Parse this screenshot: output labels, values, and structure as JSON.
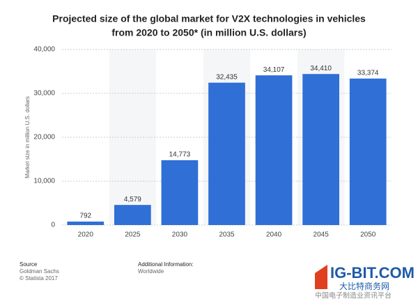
{
  "chart_data": {
    "type": "bar",
    "title": [
      "Projected size of the global market for V2X technologies in vehicles",
      "from 2020 to 2050* (in million U.S. dollars)"
    ],
    "y_label": "Market size in million U.S. dollars",
    "categories": [
      "2020",
      "2025",
      "2030",
      "2035",
      "2040",
      "2045",
      "2050"
    ],
    "values": [
      792,
      4579,
      14773,
      32435,
      34107,
      34410,
      33374
    ],
    "value_labels": [
      "792",
      "4,579",
      "14,773",
      "32,435",
      "34,107",
      "34,410",
      "33,374"
    ],
    "color": "#2f6fd6",
    "ylim": [
      0,
      40000
    ],
    "yticks": [
      0,
      {
        "value": 10000,
        "label": "10,000"
      },
      {
        "value": 20000,
        "label": "20,000"
      },
      {
        "value": 30000,
        "label": "30,000"
      },
      {
        "value": 40000,
        "label": "40,000"
      }
    ],
    "grid": true
  },
  "footer": {
    "source_heading": "Source",
    "source": "Goldman Sachs",
    "copyright": "© Statista 2017",
    "info_heading": "Additional Information:",
    "info": "Worldwide"
  },
  "watermark": {
    "logo": "IG-BIT.COM",
    "name": "大比特商务网",
    "slogan": "中国电子制造业资讯平台"
  }
}
